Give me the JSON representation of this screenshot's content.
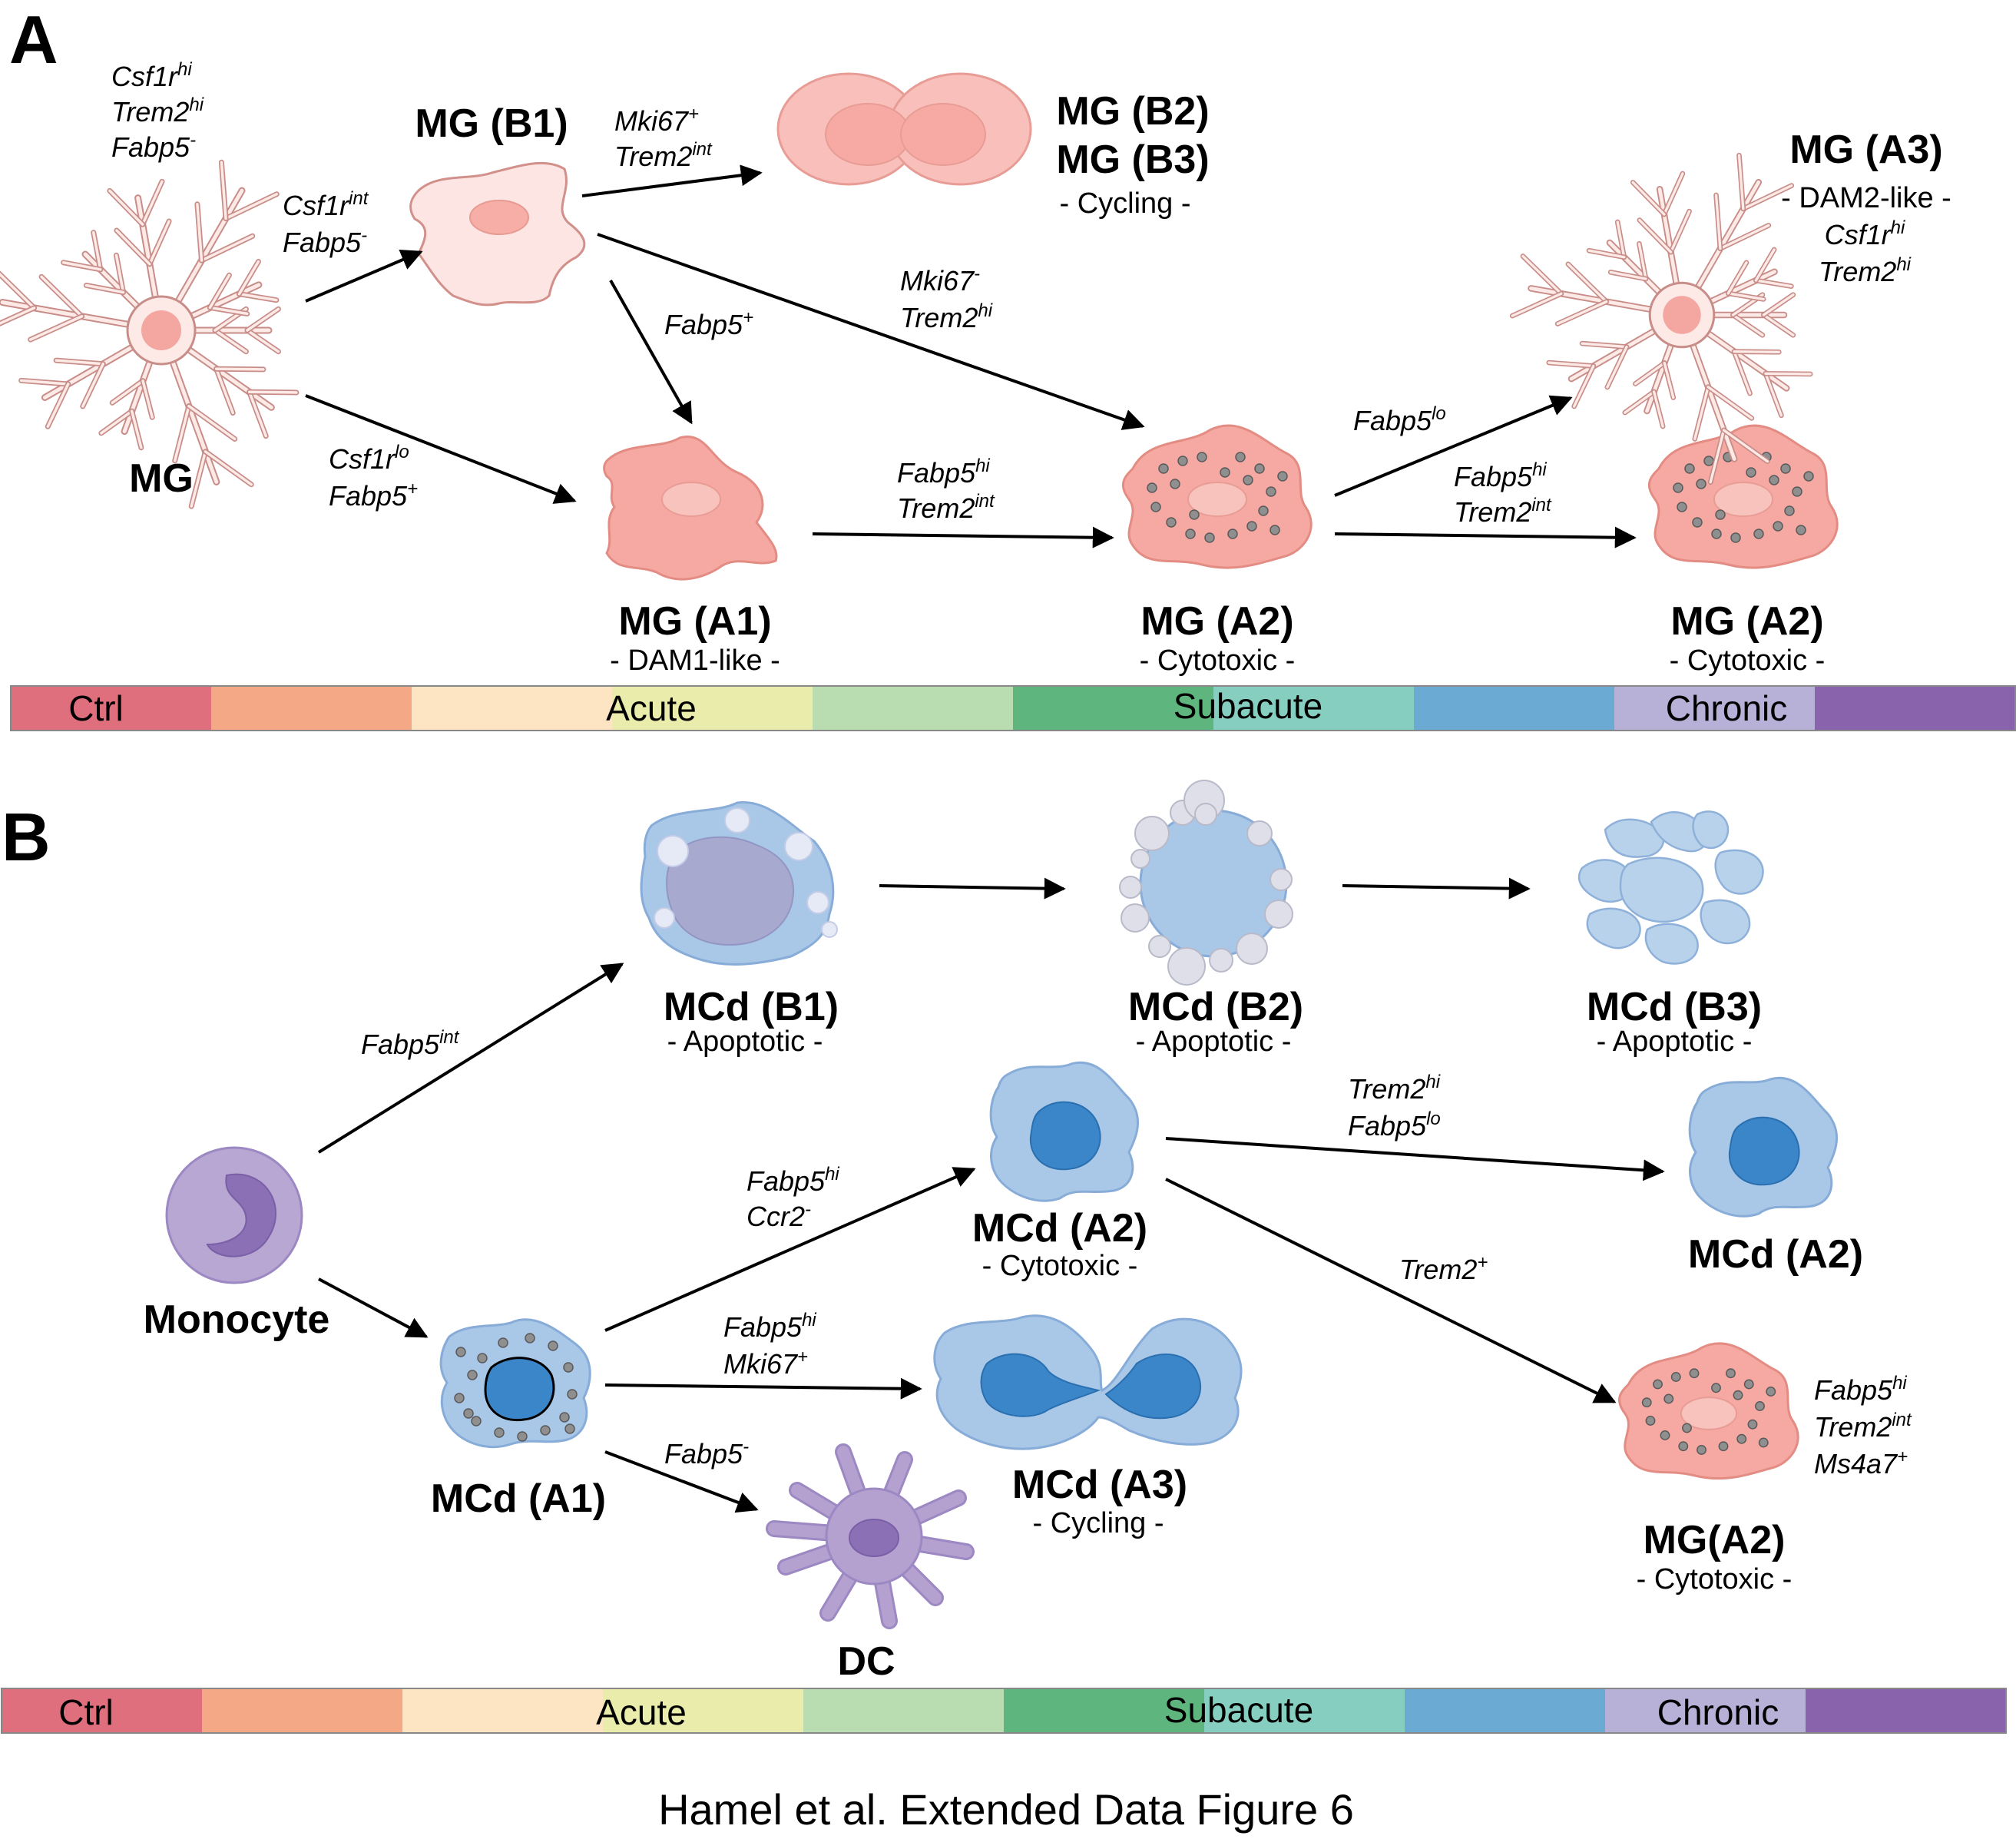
{
  "panels": {
    "a": "A",
    "b": "B"
  },
  "caption": "Hamel et al. Extended Data Figure 6",
  "timeline": {
    "ctrl": "Ctrl",
    "acute": "Acute",
    "subacute": "Subacute",
    "chronic": "Chronic"
  },
  "timeline_colors": [
    "#e06f7d",
    "#f5a886",
    "#fde4c3",
    "#e9ecab",
    "#b9dcb0",
    "#5fb57e",
    "#86cebf",
    "#6aaad3",
    "#b7b1d8",
    "#8a63ad"
  ],
  "cell_colors": {
    "microglia": "#f4a6a0",
    "monocyte_derived": "#9dc2e6",
    "monocyte": "#b4a1cf"
  },
  "panel_a": {
    "cells": {
      "mg": "MG",
      "b1": "MG (B1)",
      "b2": "MG (B2)",
      "b3": "MG (B3)",
      "b_cycling": "- Cycling -",
      "a1": "MG (A1)",
      "a1_sub": "- DAM1-like -",
      "a2_mid": "MG (A2)",
      "a2_mid_sub": "- Cytotoxic -",
      "a2_right": "MG (A2)",
      "a2_right_sub": "- Cytotoxic -",
      "a3": "MG (A3)",
      "a3_sub": "- DAM2-like -"
    },
    "markers": {
      "mg": [
        [
          "Csf1r",
          "hi"
        ],
        [
          "Trem2",
          "hi"
        ],
        [
          "Fabp5",
          "-"
        ]
      ],
      "mg_to_b1": [
        [
          "Csf1r",
          "int"
        ],
        [
          "Fabp5",
          "-"
        ]
      ],
      "b1_to_b2": [
        [
          "Mki67",
          "+"
        ],
        [
          "Trem2",
          "int"
        ]
      ],
      "b1_to_a1": [
        [
          "Fabp5",
          "+"
        ]
      ],
      "b1_to_a2": [
        [
          "Mki67",
          "-"
        ],
        [
          "Trem2",
          "hi"
        ]
      ],
      "mg_to_a1": [
        [
          "Csf1r",
          "lo"
        ],
        [
          "Fabp5",
          "+"
        ]
      ],
      "a1_to_a2": [
        [
          "Fabp5",
          "hi"
        ],
        [
          "Trem2",
          "int"
        ]
      ],
      "a2_to_a3": [
        [
          "Fabp5",
          "lo"
        ]
      ],
      "a2_to_a2": [
        [
          "Fabp5",
          "hi"
        ],
        [
          "Trem2",
          "int"
        ]
      ],
      "a3": [
        [
          "Csf1r",
          "hi"
        ],
        [
          "Trem2",
          "hi"
        ]
      ]
    }
  },
  "panel_b": {
    "cells": {
      "monocyte": "Monocyte",
      "b1": "MCd (B1)",
      "b1_sub": "- Apoptotic -",
      "b2": "MCd (B2)",
      "b2_sub": "- Apoptotic -",
      "b3": "MCd (B3)",
      "b3_sub": "- Apoptotic -",
      "a1": "MCd (A1)",
      "a2": "MCd (A2)",
      "a2_sub": "- Cytotoxic -",
      "a2_right": "MCd (A2)",
      "a3": "MCd (A3)",
      "a3_sub": "- Cycling -",
      "dc": "DC",
      "mg_a2": "MG(A2)",
      "mg_a2_sub": "- Cytotoxic -"
    },
    "markers": {
      "mono_to_b1": [
        [
          "Fabp5",
          "int"
        ]
      ],
      "a1_to_a2": [
        [
          "Fabp5",
          "hi"
        ],
        [
          "Ccr2",
          "-"
        ]
      ],
      "a1_to_a3": [
        [
          "Fabp5",
          "hi"
        ],
        [
          "Mki67",
          "+"
        ]
      ],
      "a1_to_dc": [
        [
          "Fabp5",
          "-"
        ]
      ],
      "a2_to_a2": [
        [
          "Trem2",
          "hi"
        ],
        [
          "Fabp5",
          "lo"
        ]
      ],
      "a2_to_mg": [
        [
          "Trem2",
          "+"
        ]
      ],
      "mg_a2": [
        [
          "Fabp5",
          "hi"
        ],
        [
          "Trem2",
          "int"
        ],
        [
          "Ms4a7",
          "+"
        ]
      ]
    }
  }
}
